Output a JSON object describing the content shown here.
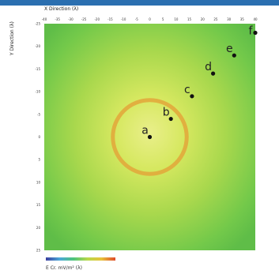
{
  "chart_data": {
    "type": "heatmap",
    "xlabel": "X Direction (λ)",
    "ylabel": "Y Direction (λ)",
    "colorbar_label": "E Cr. mV/m² (λ)",
    "x_ticks": [
      "-40",
      "-35",
      "-30",
      "-25",
      "-20",
      "-15",
      "-10",
      "-5",
      "0",
      "5",
      "10",
      "15",
      "20",
      "25",
      "30",
      "35",
      "40"
    ],
    "y_ticks": [
      "-25",
      "-20",
      "-15",
      "-10",
      "-5",
      "0",
      "5",
      "10",
      "15",
      "20",
      "25"
    ],
    "xlim": [
      -40,
      40
    ],
    "ylim": [
      -25,
      25
    ],
    "points": [
      {
        "label": "a",
        "x": 0,
        "y": 0
      },
      {
        "label": "b",
        "x": 8,
        "y": 4
      },
      {
        "label": "c",
        "x": 16,
        "y": 9
      },
      {
        "label": "d",
        "x": 24,
        "y": 14
      },
      {
        "label": "e",
        "x": 32,
        "y": 18
      },
      {
        "label": "f",
        "x": 40,
        "y": 23
      }
    ],
    "ring": {
      "center_x": 0,
      "center_y": 0,
      "radius_x": 14
    },
    "colorscale": [
      "#3b3fa0",
      "#4aa8d8",
      "#4ec47a",
      "#b8d84a",
      "#e8c23a",
      "#e04a2a"
    ]
  }
}
